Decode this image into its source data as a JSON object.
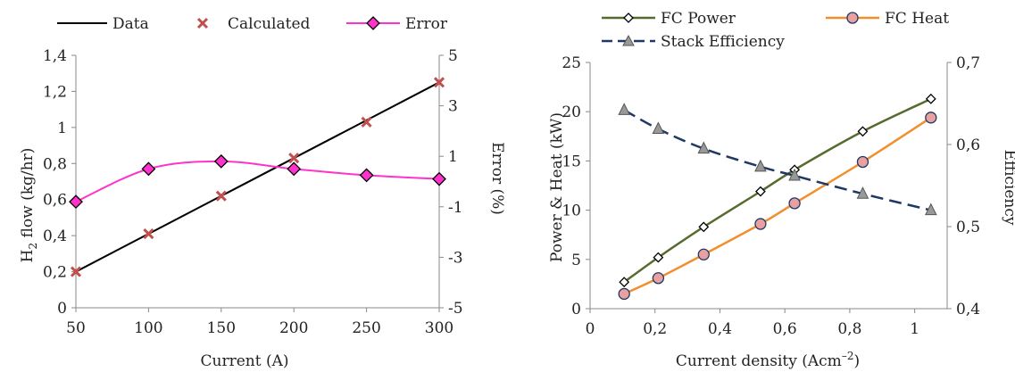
{
  "chart_data": [
    {
      "type": "line",
      "title": "",
      "xlabel": "Current (A)",
      "ylabel": "H2 flow (kg/hr)",
      "ylabel_main": "H",
      "ylabel_sub": "2",
      "ylabel_rest": " flow (kg/hr)",
      "y2label": "Error (%)",
      "xlim": [
        50,
        300
      ],
      "ylim": [
        0,
        1.4
      ],
      "y2lim": [
        -5,
        5
      ],
      "xticks": [
        50,
        100,
        150,
        200,
        250,
        300
      ],
      "yticks": [
        "0",
        "0,2",
        "0,4",
        "0,6",
        "0,8",
        "1",
        "1,2",
        "1,4"
      ],
      "y2ticks": [
        "-5",
        "-3",
        "-1",
        "1",
        "3",
        "5"
      ],
      "legend_position": "top",
      "series": [
        {
          "name": "Data",
          "axis": "left",
          "style": "line",
          "color": "#000000",
          "x": [
            50,
            300
          ],
          "y": [
            0.2,
            1.25
          ]
        },
        {
          "name": "Calculated",
          "axis": "left",
          "style": "marker-x",
          "color": "#c0504d",
          "x": [
            50,
            100,
            150,
            200,
            250,
            300
          ],
          "y": [
            0.2,
            0.41,
            0.62,
            0.83,
            1.03,
            1.25
          ]
        },
        {
          "name": "Error",
          "axis": "right",
          "style": "line-diamond",
          "color": "#ff33cc",
          "x": [
            50,
            100,
            150,
            200,
            250,
            300
          ],
          "y": [
            -0.8,
            0.5,
            0.8,
            0.5,
            0.25,
            0.1
          ]
        }
      ]
    },
    {
      "type": "line",
      "title": "",
      "xlabel": "Current density (Acm–²)",
      "xlabel_main": "Current density (Acm",
      "xlabel_sup": "–2",
      "xlabel_end": ")",
      "ylabel": "Power & Heat (kW)",
      "y2label": "Efficiency",
      "xlim": [
        0,
        1.1
      ],
      "ylim": [
        0,
        25
      ],
      "y2lim": [
        0.4,
        0.7
      ],
      "xticks": [
        "0",
        "0,2",
        "0,4",
        "0,6",
        "0,8",
        "1"
      ],
      "yticks": [
        "0",
        "5",
        "10",
        "15",
        "20",
        "25"
      ],
      "y2ticks": [
        "0,4",
        "0,5",
        "0,6",
        "0,7"
      ],
      "legend_position": "top",
      "series": [
        {
          "name": "FC Power",
          "axis": "left",
          "style": "line-diamond",
          "color": "#556b2f",
          "x": [
            0.105,
            0.21,
            0.35,
            0.525,
            0.63,
            0.84,
            1.05
          ],
          "y": [
            2.7,
            5.2,
            8.3,
            11.9,
            14.1,
            18.0,
            21.3
          ]
        },
        {
          "name": "FC Heat",
          "axis": "left",
          "style": "line-circle",
          "color": "#f28e2b",
          "x": [
            0.105,
            0.21,
            0.35,
            0.525,
            0.63,
            0.84,
            1.05
          ],
          "y": [
            1.5,
            3.1,
            5.5,
            8.6,
            10.7,
            14.9,
            19.4
          ]
        },
        {
          "name": "Stack Efficiency",
          "axis": "right",
          "style": "dashed-triangle",
          "color": "#1f3864",
          "x": [
            0.105,
            0.21,
            0.35,
            0.525,
            0.63,
            0.84,
            1.05
          ],
          "y": [
            0.642,
            0.619,
            0.595,
            0.573,
            0.562,
            0.54,
            0.52
          ]
        }
      ]
    }
  ]
}
